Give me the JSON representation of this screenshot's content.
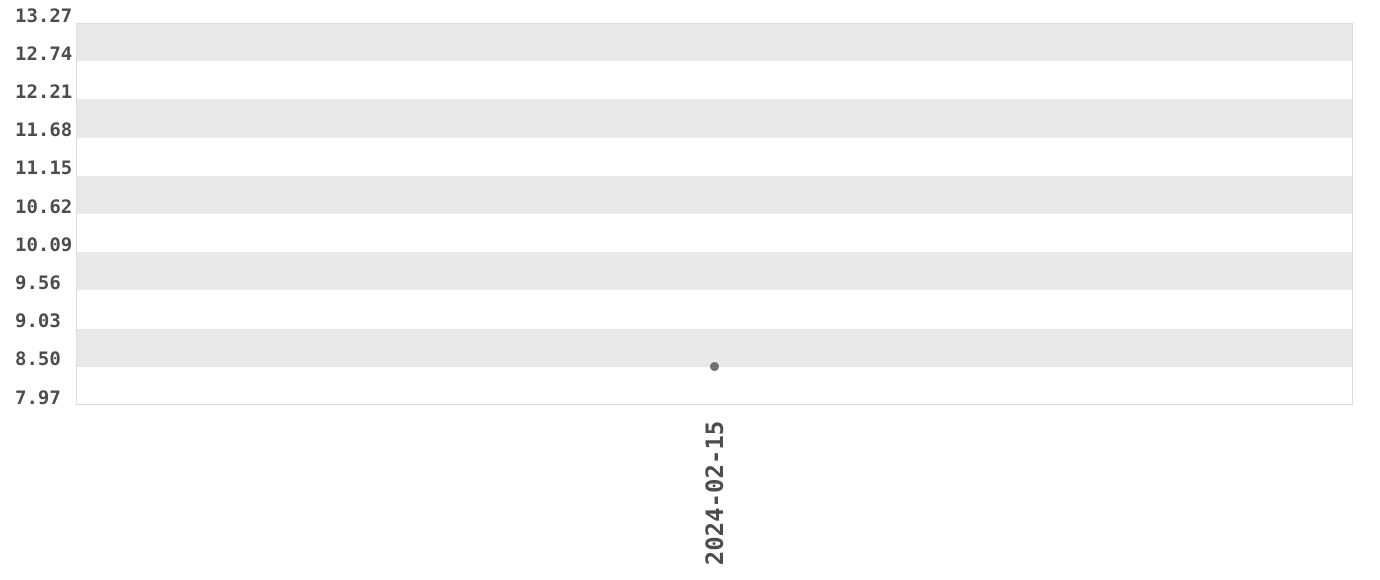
{
  "chart_data": {
    "type": "scatter",
    "title": "",
    "x": [
      "2024-02-15"
    ],
    "values": [
      8.5
    ],
    "x_tick_labels": [
      "2024-02-15"
    ],
    "y_tick_labels": [
      "13.27",
      "12.74",
      "12.21",
      "11.68",
      "11.15",
      "10.62",
      "10.09",
      "9.56",
      "9.03",
      "8.50",
      "7.97"
    ],
    "ylim": [
      7.97,
      13.27
    ],
    "y_step": 0.53,
    "legend": "none",
    "grid": "alternating-horizontal-bands"
  },
  "colors": {
    "band": "#e9e9e9",
    "plot_border": "#dcdcdc",
    "tick_text": "#4d4d4d",
    "point": "#707070",
    "background": "#ffffff"
  }
}
